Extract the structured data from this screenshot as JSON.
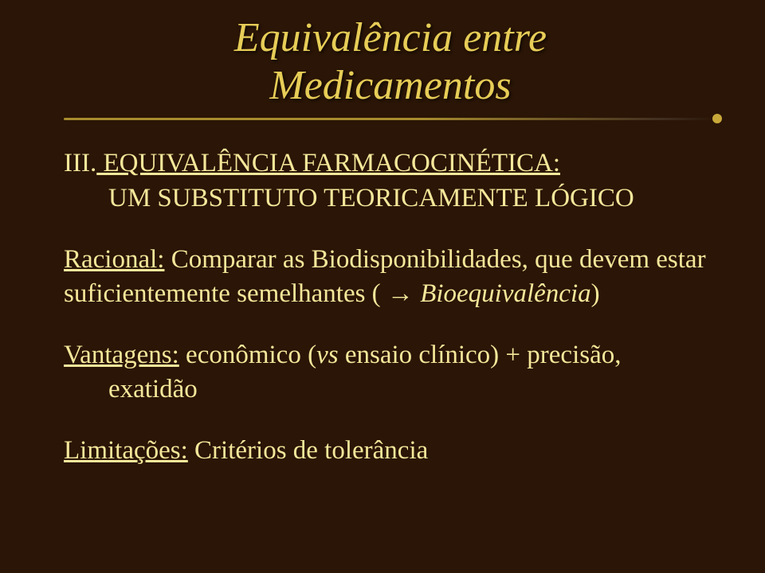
{
  "colors": {
    "background": "#2a1506",
    "title": "#e7cd57",
    "body": "#f5e79a",
    "divider": "#a88b2e",
    "dividerDot": "#c9a93a"
  },
  "typography": {
    "titleFontSize": 52,
    "bodyFontSize": 33,
    "fontFamily": "Times New Roman"
  },
  "title": {
    "line1": "Equivalência entre",
    "line2": "Medicamentos"
  },
  "heading": {
    "prefix": "III.",
    "main": " EQUIVALÊNCIA FARMACOCINÉTICA:",
    "sub": "UM SUBSTITUTO TEORICAMENTE LÓGICO"
  },
  "racional": {
    "label": "Racional:",
    "text1": " Comparar as Biodisponibilidades, que devem estar suficientemente semelhantes ( ",
    "arrow": "→",
    "text2": " ",
    "bioeq": "Bioequivalência",
    "text3": ")"
  },
  "vantagens": {
    "label": "Vantagens:",
    "text1": "   econômico (",
    "vs": "vs",
    "text2": " ensaio clínico) + precisão,",
    "exatidao": "exatidão"
  },
  "limitacoes": {
    "label": "Limitações:",
    "text": "   Critérios de tolerância"
  }
}
